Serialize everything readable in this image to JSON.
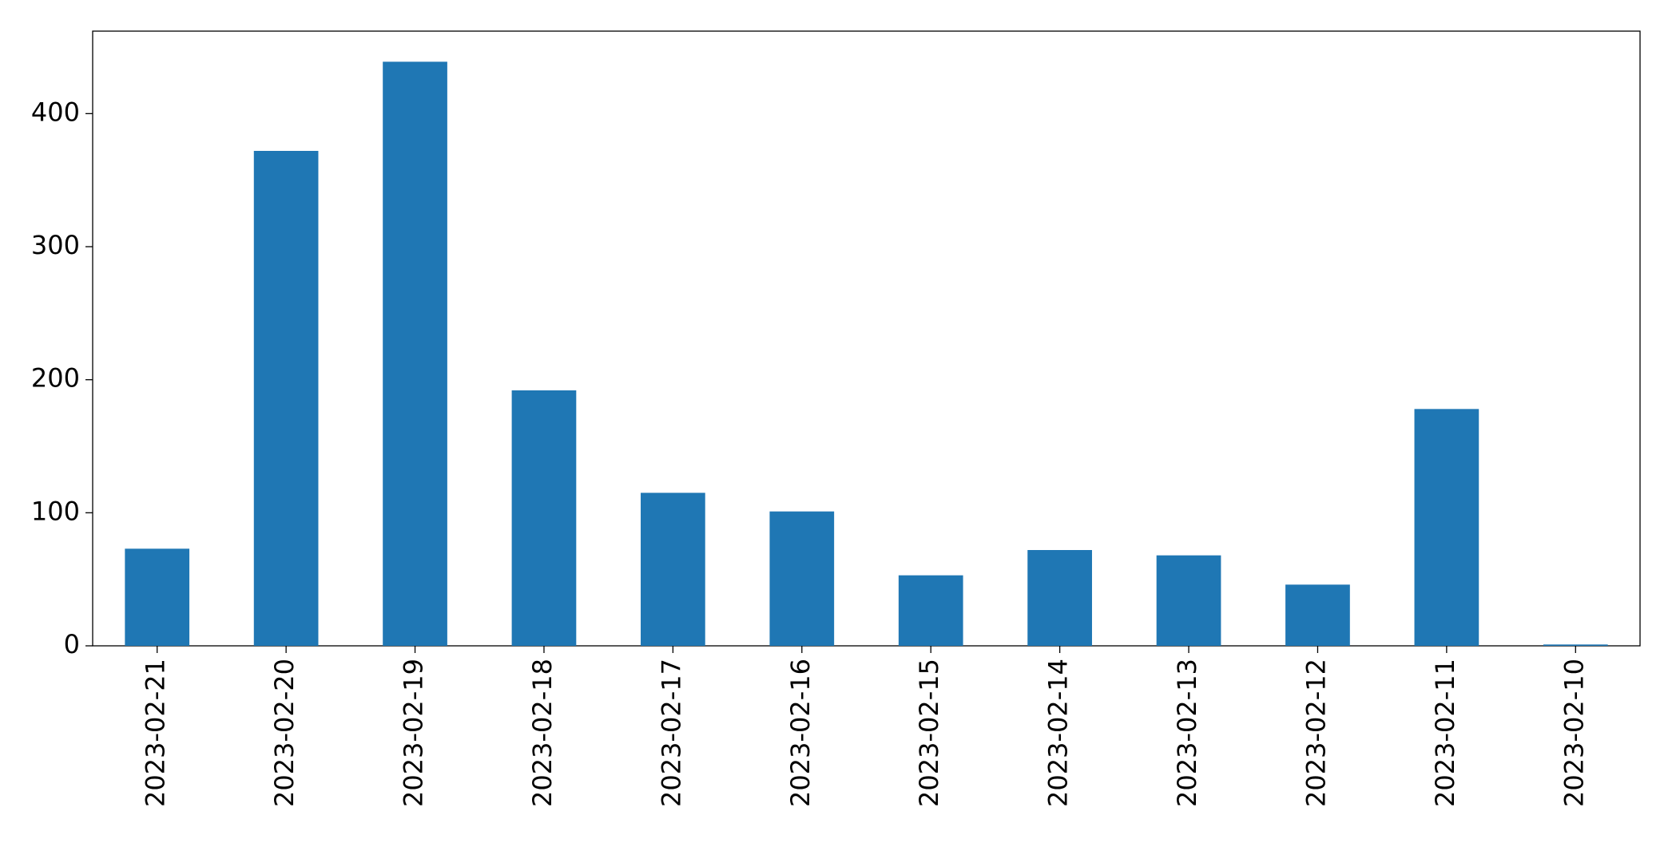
{
  "chart_data": {
    "type": "bar",
    "categories": [
      "2023-02-21",
      "2023-02-20",
      "2023-02-19",
      "2023-02-18",
      "2023-02-17",
      "2023-02-16",
      "2023-02-15",
      "2023-02-14",
      "2023-02-13",
      "2023-02-12",
      "2023-02-11",
      "2023-02-10"
    ],
    "values": [
      73,
      372,
      439,
      192,
      115,
      101,
      53,
      72,
      68,
      46,
      178,
      1
    ],
    "color": "#1f77b4",
    "ylim": [
      0,
      462
    ],
    "yticks": [
      0,
      100,
      200,
      300,
      400
    ],
    "grid": false
  }
}
